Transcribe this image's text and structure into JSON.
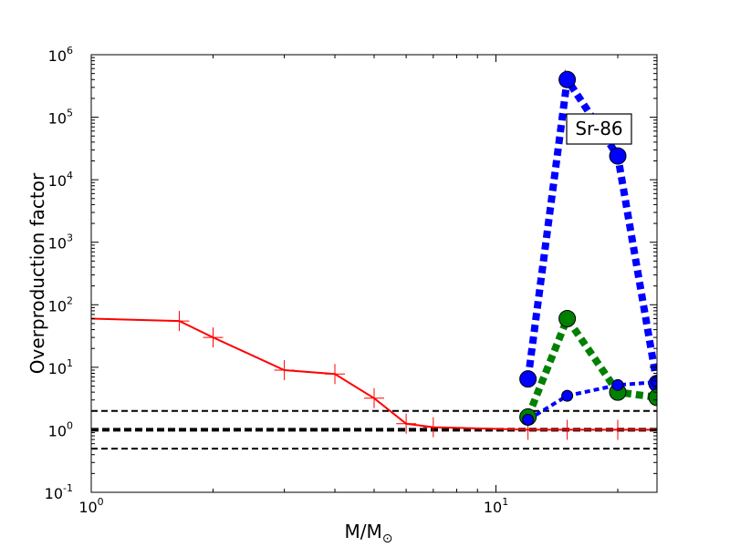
{
  "chart_data": {
    "type": "line",
    "title": "",
    "xlabel_main": "M/M",
    "xlabel_sub": "⊙",
    "ylabel": "Overproduction factor",
    "annotation": "Sr-86",
    "xscale": "log",
    "yscale": "log",
    "xlim": [
      1,
      25
    ],
    "ylim": [
      0.1,
      1000000
    ],
    "x_ticks": [
      {
        "value": 1,
        "base": "10",
        "exp": "0"
      },
      {
        "value": 10,
        "base": "10",
        "exp": "1"
      }
    ],
    "y_ticks": [
      {
        "value": 0.1,
        "base": "10",
        "exp": "-1"
      },
      {
        "value": 1,
        "base": "10",
        "exp": "0"
      },
      {
        "value": 10,
        "base": "10",
        "exp": "1"
      },
      {
        "value": 100,
        "base": "10",
        "exp": "2"
      },
      {
        "value": 1000,
        "base": "10",
        "exp": "3"
      },
      {
        "value": 10000,
        "base": "10",
        "exp": "4"
      },
      {
        "value": 100000,
        "base": "10",
        "exp": "5"
      },
      {
        "value": 1000000,
        "base": "10",
        "exp": "6"
      }
    ],
    "hlines": [
      {
        "y": 2,
        "color": "#000000",
        "style": "dashed",
        "width": "thin"
      },
      {
        "y": 1,
        "color": "#000000",
        "style": "dashed",
        "width": "thick"
      },
      {
        "y": 0.5,
        "color": "#000000",
        "style": "dashed",
        "width": "thin"
      }
    ],
    "series": [
      {
        "color": "#ff0000",
        "line": "solid",
        "marker": "plus",
        "x": [
          1,
          1.65,
          2,
          3,
          4,
          5,
          6,
          7,
          12,
          15,
          20,
          25
        ],
        "y": [
          60,
          55,
          30,
          9,
          7.8,
          3.2,
          1.25,
          1.1,
          1.0,
          1.0,
          1.0,
          1.0
        ]
      },
      {
        "color": "#0000ff",
        "line": "dotted",
        "marker": "circle-large",
        "x": [
          12,
          15,
          20,
          25
        ],
        "y": [
          6.5,
          400000,
          24000,
          5.5
        ]
      },
      {
        "color": "#008000",
        "line": "dotted",
        "marker": "circle-large",
        "x": [
          12,
          15,
          20,
          25
        ],
        "y": [
          1.6,
          60,
          4.0,
          3.3
        ]
      },
      {
        "color": "#0000ff",
        "line": "dotted-thin",
        "marker": "circle-small",
        "x": [
          12,
          15,
          20,
          25
        ],
        "y": [
          1.45,
          3.5,
          5.2,
          5.8
        ]
      }
    ]
  }
}
